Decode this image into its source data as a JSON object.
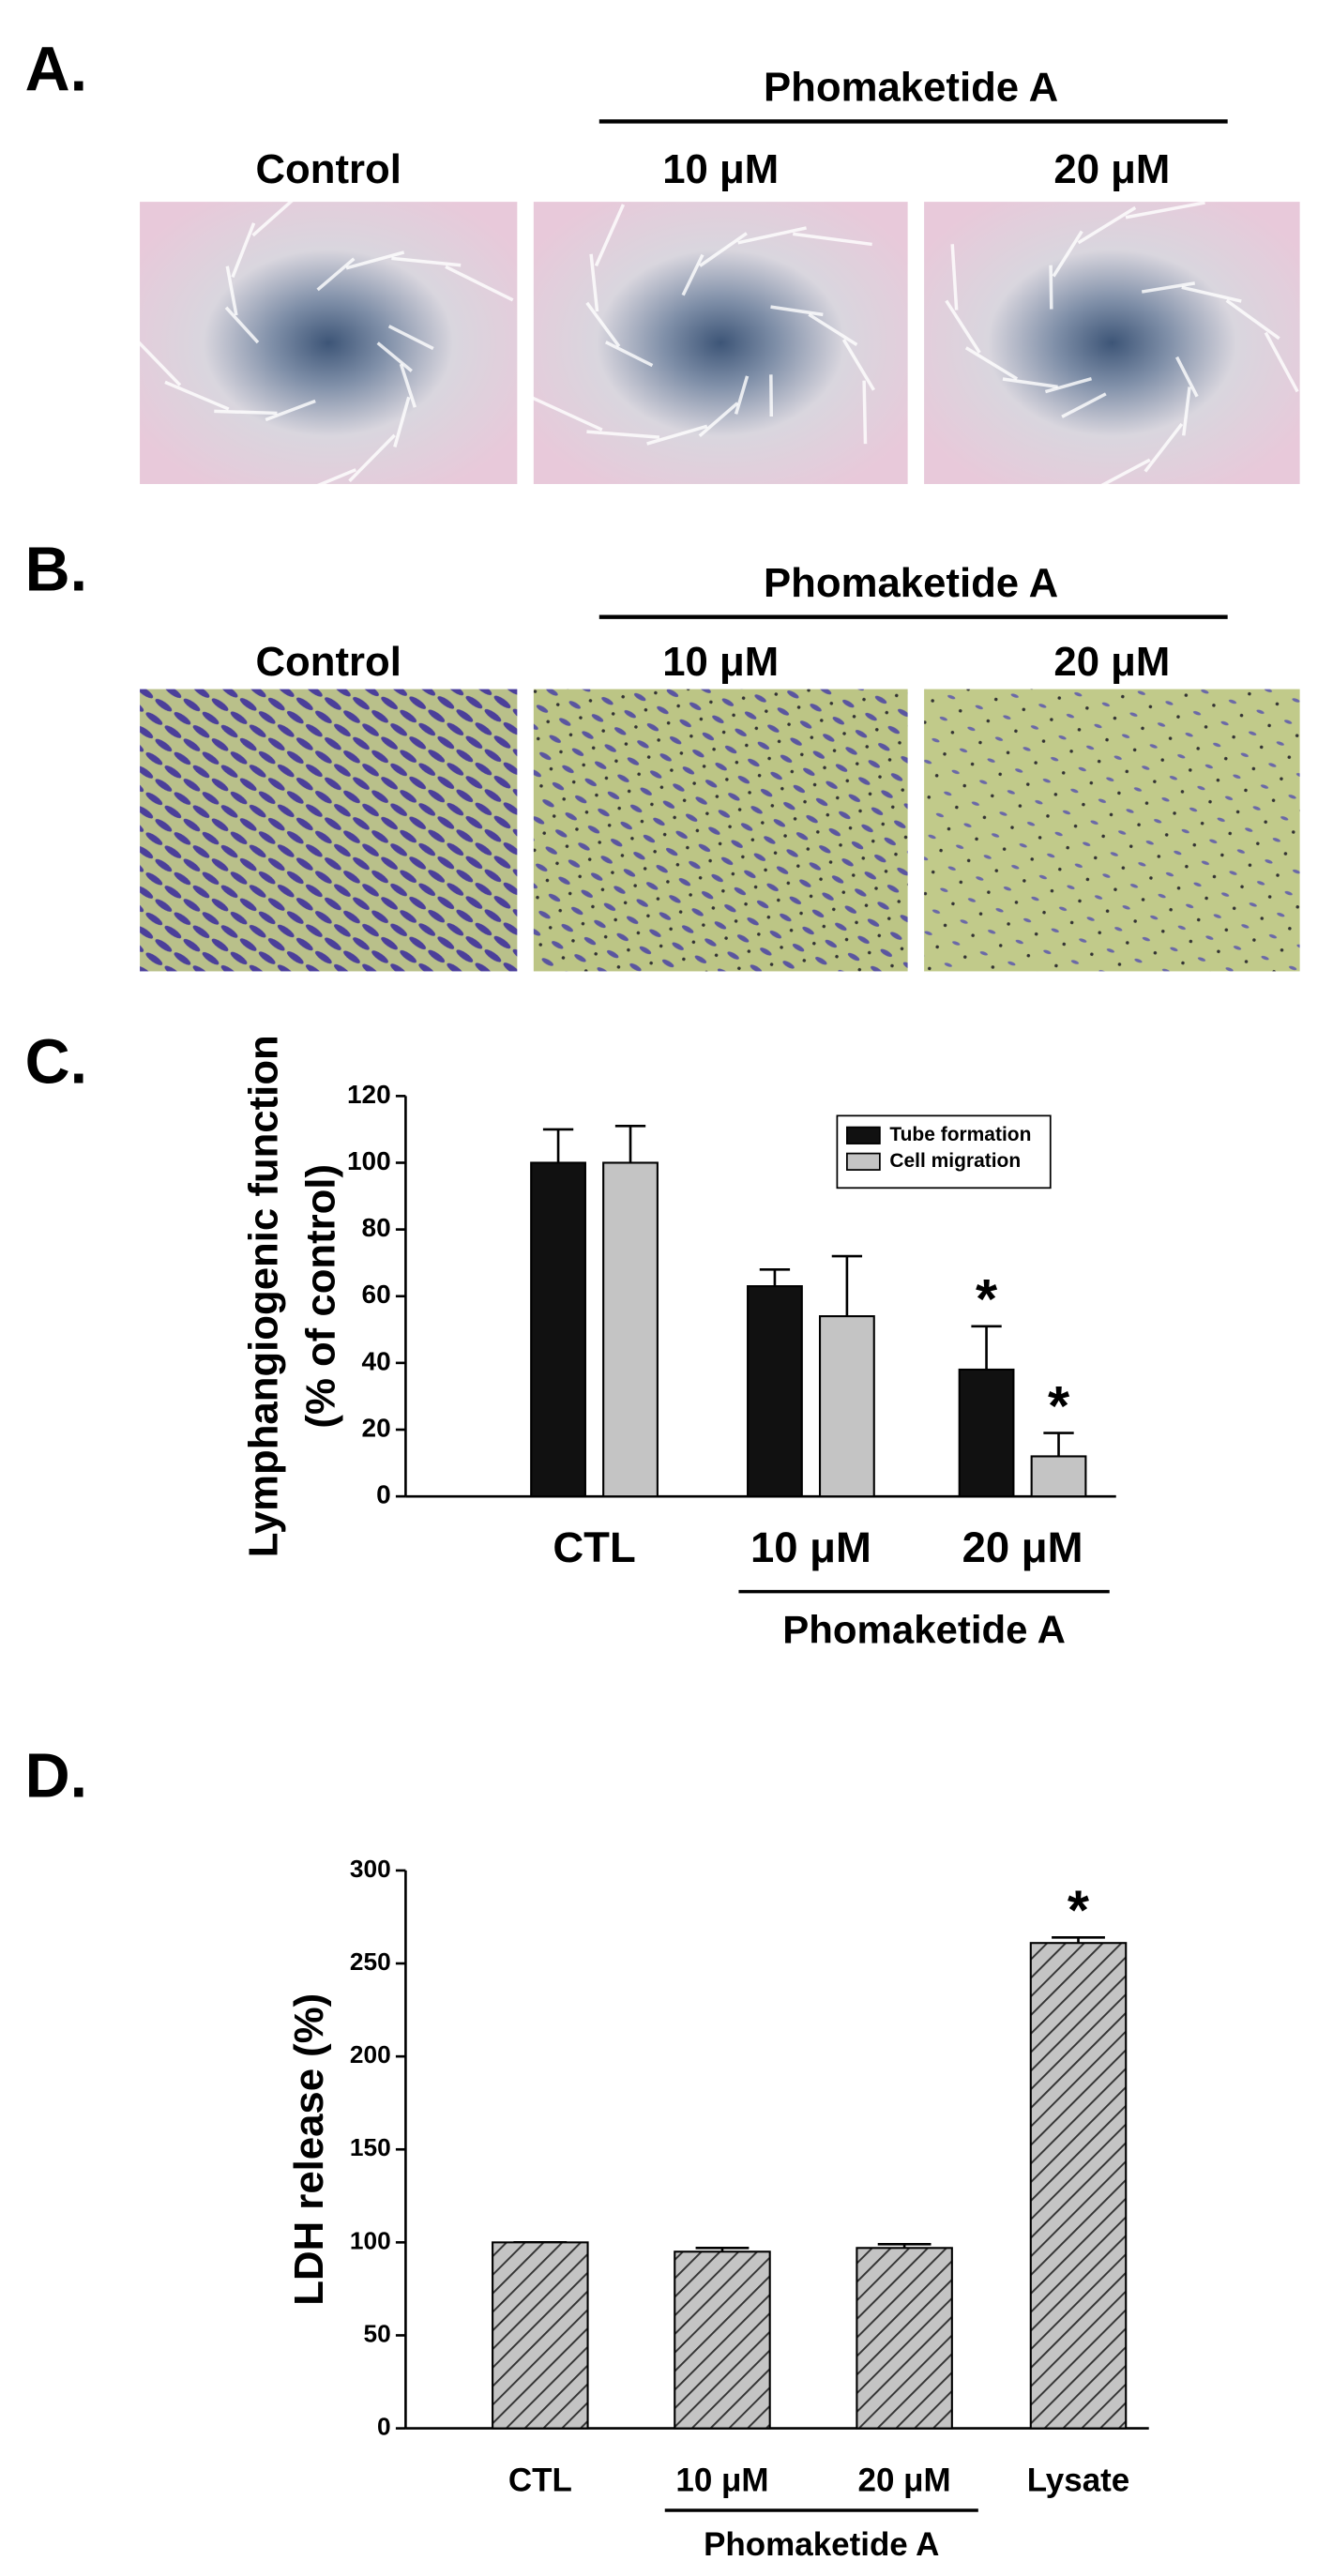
{
  "panels": [
    {
      "label": "A.",
      "group_label": "Phomaketide A",
      "images": [
        "Control",
        "10 μM",
        "20 μM"
      ]
    },
    {
      "label": "B.",
      "group_label": "Phomaketide A",
      "images": [
        "Control",
        "10 μM",
        "20 μM"
      ]
    }
  ],
  "chart_data": [
    {
      "type": "bar",
      "panel_label": "C.",
      "ylabel": [
        "Lymphangiogenic function",
        "(% of control)"
      ],
      "categories": [
        "CTL",
        "10 μM",
        "20 μM"
      ],
      "group_label": "Phomaketide A",
      "series": [
        {
          "name": "Tube formation",
          "color": "#111111",
          "values": [
            100,
            63,
            38
          ],
          "errors": [
            10,
            5,
            13
          ],
          "annotations": [
            null,
            null,
            "*"
          ]
        },
        {
          "name": "Cell migration",
          "color": "#c4c4c4",
          "values": [
            100,
            54,
            12
          ],
          "errors": [
            11,
            18,
            7
          ],
          "annotations": [
            null,
            null,
            "*"
          ]
        }
      ],
      "ylim": [
        0,
        120
      ],
      "yticks": [
        0,
        20,
        40,
        60,
        80,
        100,
        120
      ],
      "legend": "upper right",
      "hatch": false
    },
    {
      "type": "bar",
      "panel_label": "D.",
      "ylabel": [
        "LDH release (%)"
      ],
      "categories": [
        "CTL",
        "10 μM",
        "20 μM",
        "Lysate"
      ],
      "group_label": "Phomaketide A",
      "series": [
        {
          "name": null,
          "color": "#c4c4c4",
          "values": [
            100,
            95,
            97,
            261
          ],
          "errors": [
            0,
            2,
            2,
            3
          ],
          "annotations": [
            null,
            null,
            null,
            "*"
          ]
        }
      ],
      "ylim": [
        0,
        300
      ],
      "yticks": [
        0,
        50,
        100,
        150,
        200,
        250,
        300
      ],
      "legend": null,
      "hatch": true
    }
  ]
}
